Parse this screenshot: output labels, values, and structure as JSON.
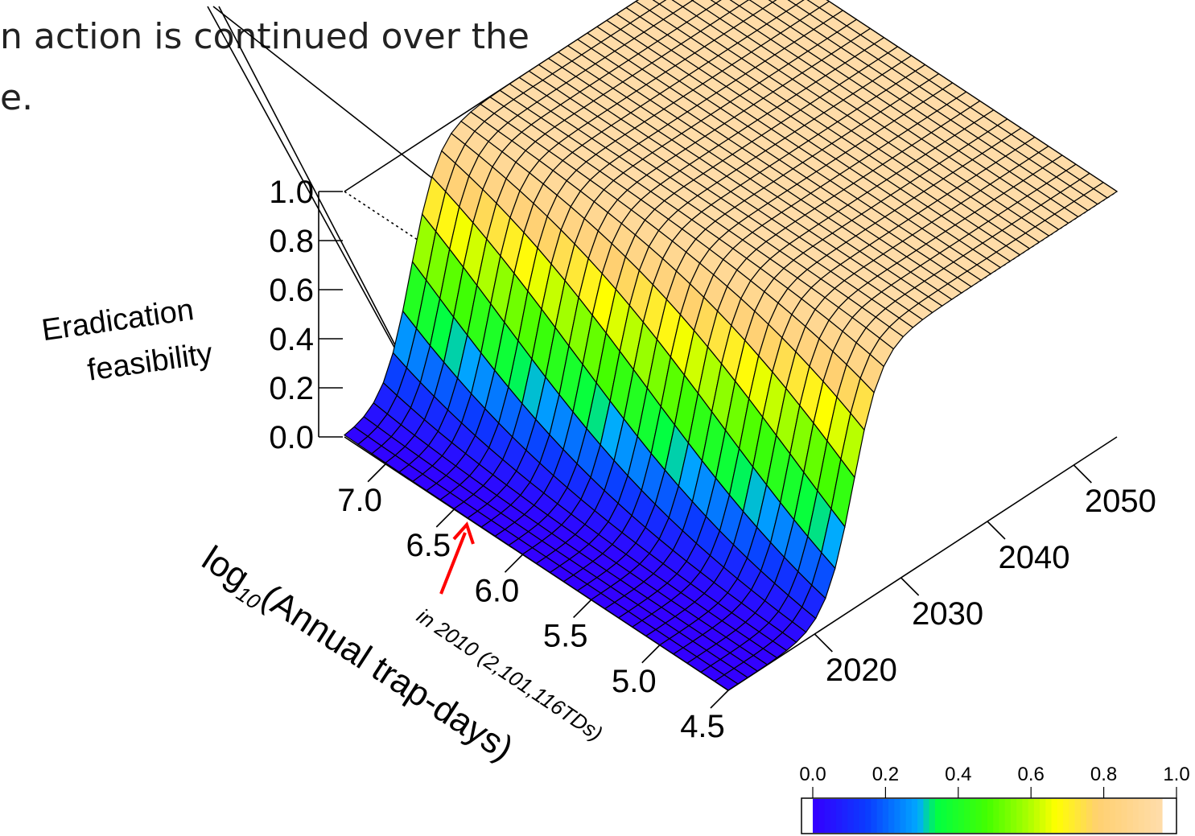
{
  "caption": {
    "line1": "n action is continued over the",
    "line2": "e."
  },
  "chart_data": {
    "type": "surface3d",
    "zlabel_lines": [
      "Eradication",
      "feasibility"
    ],
    "ylabel_prefix": "log",
    "ylabel_sub": "10",
    "ylabel_rest": "(Annual trap-days)",
    "z_ticks": [
      "0.0",
      "0.2",
      "0.4",
      "0.6",
      "0.8",
      "1.0"
    ],
    "y_ticks": [
      "4.5",
      "5.0",
      "5.5",
      "6.0",
      "6.5",
      "7.0"
    ],
    "x_ticks": [
      "2020",
      "2030",
      "2040",
      "2050"
    ],
    "xlim": [
      2010,
      2055
    ],
    "ylim": [
      4.5,
      7.3
    ],
    "zlim": [
      0,
      1
    ],
    "surface_model": "logistic",
    "surface_params": {
      "k": 14.65,
      "a": 0.0435,
      "c": 0.105,
      "b": 1.1
    },
    "annotation": "in 2010 (2,101,116TDs)",
    "annotation_value": 2101116,
    "annotation_color": "#ff0000",
    "legend": {
      "ticks": [
        "0.0",
        "0.2",
        "0.4",
        "0.6",
        "0.8",
        "1.0"
      ],
      "colors": [
        "#3300ff",
        "#0066ff",
        "#00ccff",
        "#00ff33",
        "#99ff00",
        "#ffff00",
        "#ffe066",
        "#ffd8a8"
      ]
    },
    "color_stops": [
      {
        "v": 0.0,
        "c": "#3300ff"
      },
      {
        "v": 0.15,
        "c": "#0a3cff"
      },
      {
        "v": 0.3,
        "c": "#00aaff"
      },
      {
        "v": 0.35,
        "c": "#00ff44"
      },
      {
        "v": 0.5,
        "c": "#44ff00"
      },
      {
        "v": 0.62,
        "c": "#aaff00"
      },
      {
        "v": 0.7,
        "c": "#ffff00"
      },
      {
        "v": 0.82,
        "c": "#ffd070"
      },
      {
        "v": 1.0,
        "c": "#ffdca8"
      }
    ]
  }
}
